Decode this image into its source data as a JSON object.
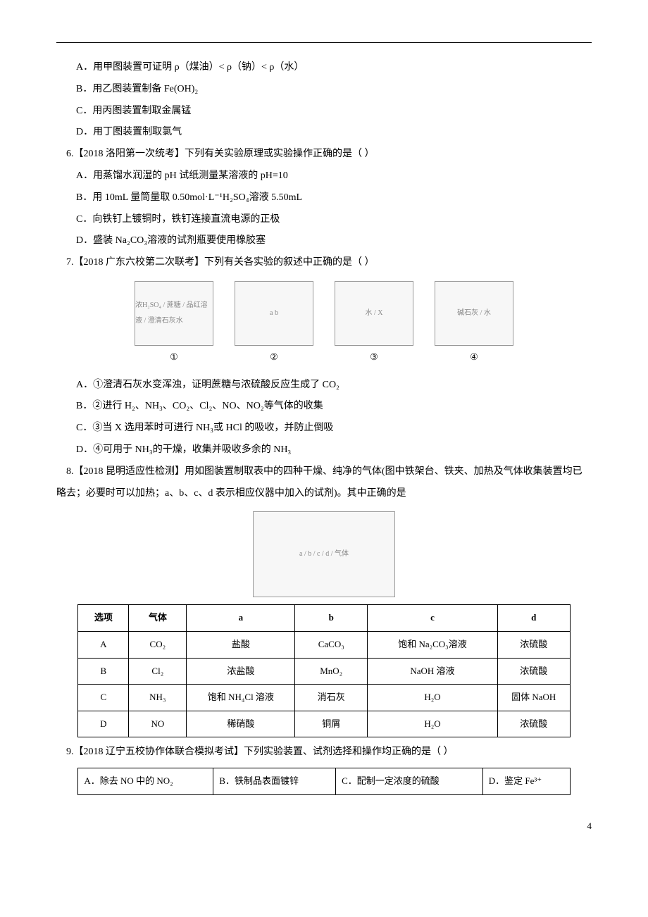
{
  "q5": {
    "optA": "A．用甲图装置可证明 ρ（煤油）< ρ（钠）< ρ（水）",
    "optB": "B．用乙图装置制备 Fe(OH)₂",
    "optC": "C．用丙图装置制取金属锰",
    "optD": "D．用丁图装置制取氯气"
  },
  "q6": {
    "stem": "6.【2018 洛阳第一次统考】下列有关实验原理或实验操作正确的是（    ）",
    "optA": "A．用蒸馏水润湿的 pH 试纸测量某溶液的 pH=10",
    "optB": "B．用 10mL 量筒量取 0.50mol·L⁻¹H₂SO₄溶液 5.50mL",
    "optC": "C．向铁钉上镀铜时，铁钉连接直流电源的正极",
    "optD": "D．盛装 Na₂CO₃溶液的试剂瓶要使用橡胶塞"
  },
  "q7": {
    "stem": "7.【2018 广东六校第二次联考】下列有关各实验的叙述中正确的是（    ）",
    "figs": {
      "c1": "浓H₂SO₄ / 蔗糖 / 品红溶液 / 澄清石灰水",
      "c2": "a  b",
      "c3": "水 / X",
      "c4": "碱石灰 / 水",
      "l1": "①",
      "l2": "②",
      "l3": "③",
      "l4": "④"
    },
    "optA": "A．①澄清石灰水变浑浊，证明蔗糖与浓硫酸反应生成了 CO₂",
    "optB": "B．②进行 H₂、NH₃、CO₂、Cl₂、NO、NO₂等气体的收集",
    "optC": "C．③当 X 选用苯时可进行 NH₃或 HCl 的吸收，并防止倒吸",
    "optD": "D．④可用于 NH₃的干燥，收集并吸收多余的 NH₃"
  },
  "q8": {
    "stem": "8.【2018 昆明适应性检测】用如图装置制取表中的四种干燥、纯净的气体(图中铁架台、铁夹、加热及气体收集装置均已略去；必要时可以加热；a、b、c、d 表示相应仪器中加入的试剂)。其中正确的是",
    "fig_caption": "a / b / c / d / 气体",
    "table": {
      "headers": [
        "选项",
        "气体",
        "a",
        "b",
        "c",
        "d"
      ],
      "rows": [
        [
          "A",
          "CO₂",
          "盐酸",
          "CaCO₃",
          "饱和 Na₂CO₃溶液",
          "浓硫酸"
        ],
        [
          "B",
          "Cl₂",
          "浓盐酸",
          "MnO₂",
          "NaOH 溶液",
          "浓硫酸"
        ],
        [
          "C",
          "NH₃",
          "饱和 NH₄Cl 溶液",
          "消石灰",
          "H₂O",
          "固体 NaOH"
        ],
        [
          "D",
          "NO",
          "稀硝酸",
          "铜屑",
          "H₂O",
          "浓硫酸"
        ]
      ],
      "col_widths": [
        "70px",
        "80px",
        "150px",
        "100px",
        "180px",
        "100px"
      ]
    }
  },
  "q9": {
    "stem": "9.【2018 辽宁五校协作体联合模拟考试】下列实验装置、试剂选择和操作均正确的是（    ）",
    "table": {
      "rows": [
        [
          "A．除去 NO 中的 NO₂",
          "B．铁制品表面镀锌",
          "C．配制一定浓度的硫酸",
          "D．鉴定 Fe³⁺"
        ]
      ]
    }
  },
  "page_number": "4"
}
